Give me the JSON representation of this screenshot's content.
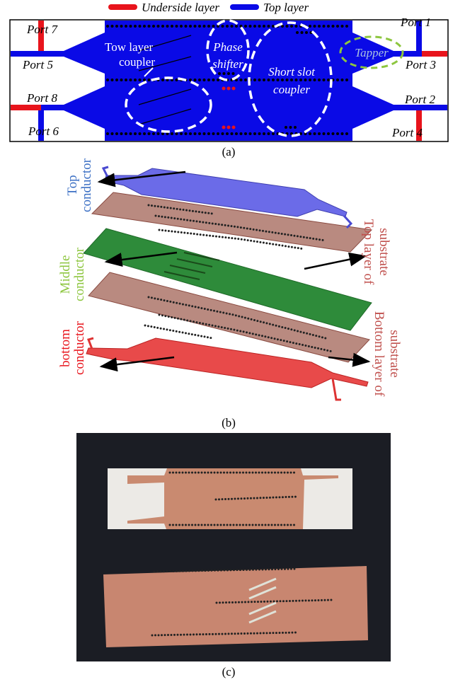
{
  "legend": {
    "items": [
      "Underside layer",
      "Top layer"
    ]
  },
  "panel_a": {
    "ports": [
      "Port 7",
      "Port 1",
      "Port 5",
      "Port 3",
      "Port 8",
      "Port 2",
      "Port 6",
      "Port 4"
    ],
    "regions": {
      "coupler": [
        "Tow layer",
        "coupler"
      ],
      "phase_shifter": [
        "Phase",
        "shifter"
      ],
      "short_slot": [
        "Short slot",
        "coupler"
      ],
      "tapper": "Tapper"
    },
    "caption": "(a)"
  },
  "panel_b": {
    "top_conductor": [
      "Top",
      "conductor"
    ],
    "top_substrate": [
      "Top layer of",
      "substrate"
    ],
    "middle_conductor": [
      "Middle",
      "conductor"
    ],
    "bottom_substrate": [
      "Bottom layer of",
      "substrate"
    ],
    "bottom_conductor": [
      "bottom",
      "conductor"
    ],
    "caption": "(b)"
  },
  "panel_c": {
    "caption": "(c)"
  }
}
